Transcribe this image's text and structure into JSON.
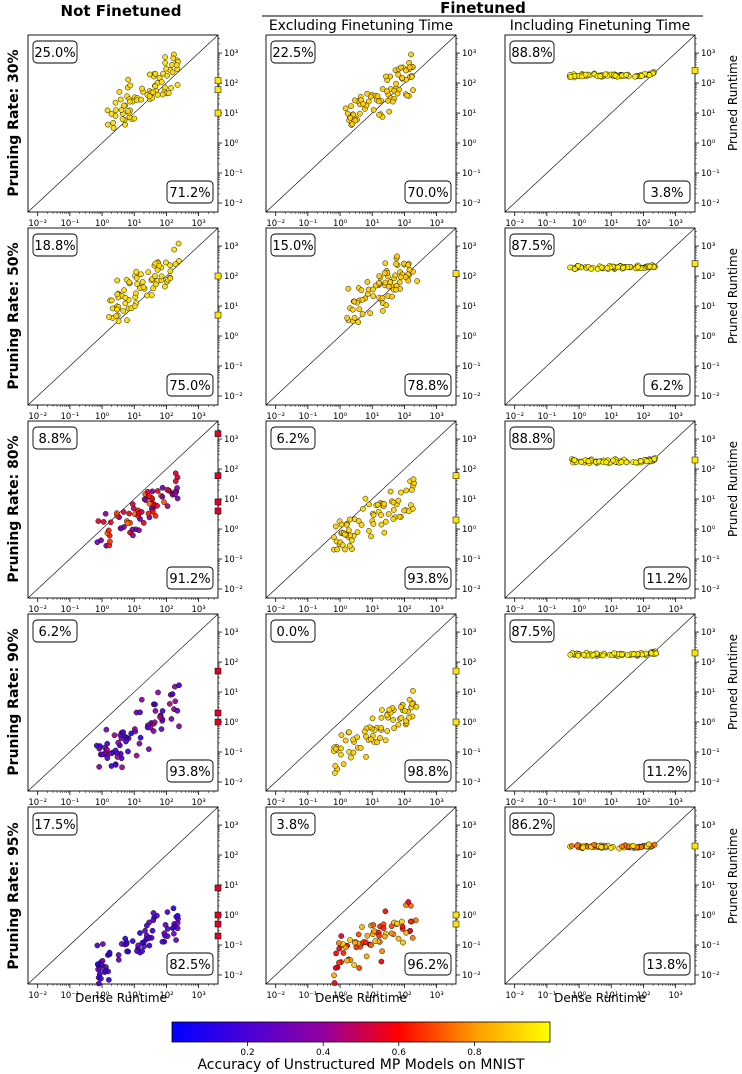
{
  "figure": {
    "col_title_left": "Not Finetuned",
    "col_title_group": "Finetuned",
    "col_subtitle_mid": "Excluding Finetuning Time",
    "col_subtitle_right": "Including Finetuning Time",
    "row_labels": [
      "Pruning Rate: 30%",
      "Pruning Rate: 50%",
      "Pruning Rate: 80%",
      "Pruning Rate: 90%",
      "Pruning Rate: 95%"
    ],
    "xlabel": "Dense Runtime",
    "ylabel": "Pruned Runtime",
    "colorbar_label": "Accuracy of Unstructured MP Models on MNIST",
    "colorbar_ticks": [
      "0.2",
      "0.4",
      "0.6",
      "0.8"
    ],
    "colorbar_tick_values": [
      0.2,
      0.4,
      0.6,
      0.8
    ],
    "colorbar_range": [
      0.0,
      1.0
    ],
    "colormap": "plasma",
    "colors": {
      "bg": "#ffffff",
      "diag": "#000000"
    }
  },
  "chart_data": {
    "type": "scatter",
    "x_scale": "log",
    "y_scale": "log",
    "xlim": [
      0.005,
      4000
    ],
    "ylim": [
      0.005,
      4000
    ],
    "x_ticks": [
      "10⁻²",
      "10⁻¹",
      "10⁰",
      "10¹",
      "10²",
      "10³"
    ],
    "y_ticks": [
      "10⁻²",
      "10⁻¹",
      "10⁰",
      "10¹",
      "10²",
      "10³"
    ],
    "tick_exponents": [
      -2,
      -1,
      0,
      1,
      2,
      3
    ],
    "diagonal": "y = x",
    "panels": [
      {
        "row": 0,
        "col": 0,
        "pct_above": "25.0%",
        "pct_below": "71.2%",
        "cluster": [
          0.15,
          2.4,
          0.85,
          0.55,
          0.95,
          0.92
        ],
        "right_marks": [
          120,
          60,
          10
        ]
      },
      {
        "row": 0,
        "col": 1,
        "pct_above": "22.5%",
        "pct_below": "70.0%",
        "cluster": [
          0.15,
          2.4,
          0.8,
          0.6,
          0.9,
          0.9
        ],
        "right_marks": []
      },
      {
        "row": 0,
        "col": 2,
        "pct_above": "88.8%",
        "pct_below": "3.8%",
        "flat_y": 180,
        "cluster": [
          -0.3,
          2.4,
          0,
          0,
          1,
          1
        ],
        "right_marks": [
          260
        ]
      },
      {
        "row": 1,
        "col": 0,
        "pct_above": "18.8%",
        "pct_below": "75.0%",
        "cluster": [
          0.2,
          2.4,
          0.85,
          0.55,
          0.92,
          0.92
        ],
        "right_marks": [
          100,
          5
        ]
      },
      {
        "row": 1,
        "col": 1,
        "pct_above": "15.0%",
        "pct_below": "78.8%",
        "cluster": [
          0.2,
          2.4,
          0.8,
          0.55,
          0.9,
          0.9
        ],
        "right_marks": [
          120
        ]
      },
      {
        "row": 1,
        "col": 2,
        "pct_above": "87.5%",
        "pct_below": "6.2%",
        "flat_y": 190,
        "cluster": [
          -0.3,
          2.4,
          0,
          0,
          1,
          1
        ],
        "right_marks": [
          260
        ]
      },
      {
        "row": 2,
        "col": 0,
        "pct_above": "8.8%",
        "pct_below": "91.2%",
        "cluster": [
          -0.2,
          2.4,
          0.75,
          -0.35,
          0.3,
          0.75
        ],
        "right_marks": [
          1500,
          60,
          8,
          4
        ]
      },
      {
        "row": 2,
        "col": 1,
        "pct_above": "6.2%",
        "pct_below": "93.8%",
        "cluster": [
          -0.2,
          2.4,
          0.7,
          -0.3,
          0.9,
          0.92
        ],
        "right_marks": [
          60,
          2
        ]
      },
      {
        "row": 2,
        "col": 2,
        "pct_above": "88.8%",
        "pct_below": "11.2%",
        "flat_y": 180,
        "cluster": [
          -0.3,
          2.4,
          0,
          0,
          1,
          1
        ],
        "right_marks": [
          200
        ]
      },
      {
        "row": 3,
        "col": 0,
        "pct_above": "6.2%",
        "pct_below": "93.8%",
        "cluster": [
          -0.2,
          2.4,
          0.75,
          -1.1,
          0.12,
          0.45
        ],
        "right_marks": [
          50,
          2,
          1
        ]
      },
      {
        "row": 3,
        "col": 1,
        "pct_above": "0.0%",
        "pct_below": "98.8%",
        "cluster": [
          -0.2,
          2.4,
          0.75,
          -1.05,
          0.9,
          0.92
        ],
        "right_marks": [
          50,
          1
        ]
      },
      {
        "row": 3,
        "col": 2,
        "pct_above": "87.5%",
        "pct_below": "11.2%",
        "flat_y": 180,
        "cluster": [
          -0.3,
          2.4,
          0,
          0,
          1,
          1
        ],
        "right_marks": [
          200
        ]
      },
      {
        "row": 4,
        "col": 0,
        "pct_above": "17.5%",
        "pct_below": "82.5%",
        "cluster": [
          -0.2,
          2.4,
          0.6,
          -1.55,
          0.1,
          0.3
        ],
        "right_marks": [
          8,
          1,
          0.5,
          0.2
        ]
      },
      {
        "row": 4,
        "col": 1,
        "pct_above": "3.8%",
        "pct_below": "96.2%",
        "cluster": [
          -0.2,
          2.4,
          0.5,
          -1.35,
          0.55,
          0.92
        ],
        "right_marks": [
          1,
          0.5
        ]
      },
      {
        "row": 4,
        "col": 2,
        "pct_above": "86.2%",
        "pct_below": "13.8%",
        "flat_y": 190,
        "cluster": [
          -0.3,
          2.4,
          0,
          0,
          1,
          1
        ],
        "right_marks": [
          200
        ]
      }
    ]
  }
}
